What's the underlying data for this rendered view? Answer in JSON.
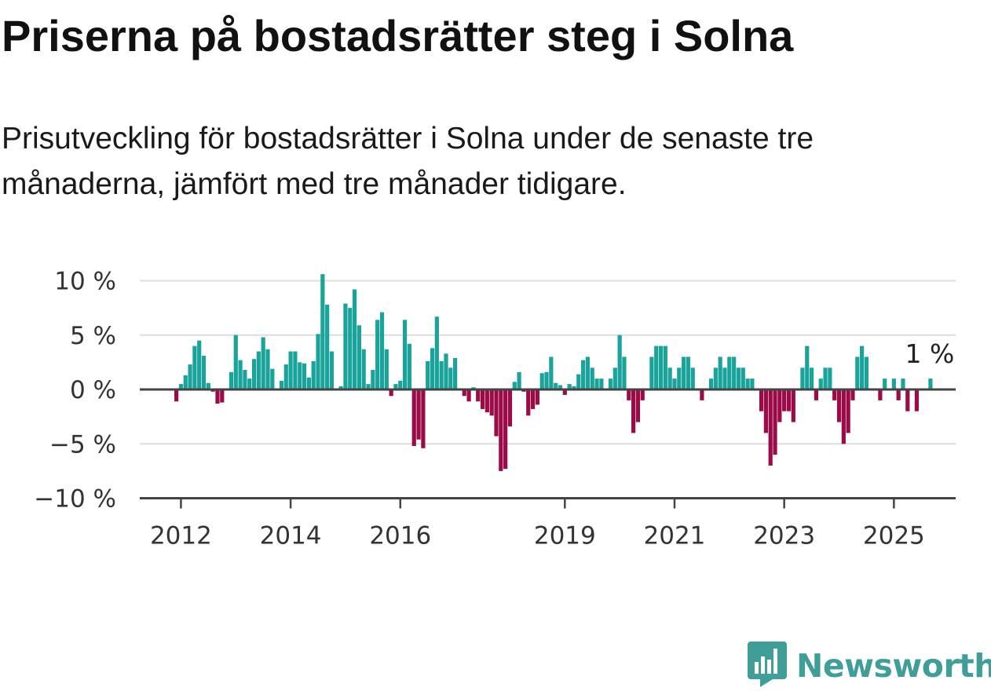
{
  "title": "Priserna på bostadsrätter steg i Solna",
  "subtitle": "Prisutveckling för bostadsrätter i Solna under de senaste tre månaderna, jämfört med tre månader tidigare.",
  "brand": {
    "name": "Newsworthy",
    "icon": "newsworthy-logo-icon"
  },
  "colors": {
    "positive": "#1aa39a",
    "negative": "#9b0b47",
    "grid": "#dddddd",
    "axis": "#444444",
    "brand": "#3f9e97"
  },
  "chart_data": {
    "type": "bar",
    "unit": "%",
    "start": "2011-12",
    "frequency": "monthly",
    "ylim": [
      -10,
      10
    ],
    "yticks": [
      {
        "value": 10,
        "label": "10 %"
      },
      {
        "value": 5,
        "label": "5 %"
      },
      {
        "value": 0,
        "label": "0 %"
      },
      {
        "value": -5,
        "label": "−5 %"
      },
      {
        "value": -10,
        "label": "−10 %"
      }
    ],
    "xticks": [
      "2012",
      "2014",
      "2016",
      "2019",
      "2021",
      "2023",
      "2025"
    ],
    "grid": true,
    "annotation": {
      "text": "1 %",
      "at": "last"
    },
    "values": [
      -1.1,
      0.5,
      1.3,
      2.3,
      4.0,
      4.5,
      3.1,
      0.6,
      -0.2,
      -1.3,
      -1.2,
      0,
      1.6,
      5.0,
      2.7,
      1.8,
      1.0,
      2.8,
      3.5,
      4.8,
      3.7,
      1.9,
      0,
      0.8,
      2.3,
      3.5,
      3.5,
      2.5,
      2.4,
      1.1,
      2.6,
      5.1,
      10.6,
      7.8,
      3.5,
      0,
      0.3,
      7.9,
      7.5,
      9.2,
      5.9,
      3.7,
      0.5,
      1.8,
      6.4,
      7.1,
      3.7,
      -0.6,
      0.5,
      0.8,
      6.4,
      4.2,
      -5.2,
      -4.6,
      -5.4,
      2.6,
      3.8,
      6.7,
      2.6,
      3.3,
      2.0,
      2.9,
      0,
      -0.6,
      -1.1,
      0.2,
      -1.1,
      -1.8,
      -2.1,
      -2.4,
      -4.3,
      -7.5,
      -7.3,
      -3.4,
      0.7,
      1.6,
      -0.2,
      -2.4,
      -1.8,
      -1.4,
      1.5,
      1.6,
      3.0,
      0.6,
      0.4,
      -0.5,
      0.5,
      0.3,
      1.4,
      2.7,
      3.0,
      2.0,
      1.0,
      1.0,
      0,
      1.0,
      2.0,
      5.0,
      3.0,
      -1.0,
      -4.0,
      -3.0,
      -1.0,
      0,
      3.0,
      4.0,
      4.0,
      4.0,
      2.0,
      1.0,
      2.0,
      3.0,
      3.0,
      2.0,
      0,
      -1.0,
      0,
      1.0,
      2.0,
      3.0,
      2.0,
      3.0,
      3.0,
      2.0,
      2.0,
      1.0,
      1.0,
      0,
      -2.0,
      -4.0,
      -7.0,
      -6.0,
      -3.0,
      -2.0,
      -2.0,
      -3.0,
      0,
      2.0,
      4.0,
      2.0,
      -1.0,
      1.0,
      2.0,
      2.0,
      -1.0,
      -3.0,
      -5.0,
      -4.0,
      -1.0,
      3.0,
      4.0,
      3.0,
      0,
      0,
      -1.0,
      1.0,
      0,
      1.0,
      -1.0,
      1.0,
      -2.0,
      0,
      -2.0,
      0,
      0,
      1.0
    ]
  }
}
